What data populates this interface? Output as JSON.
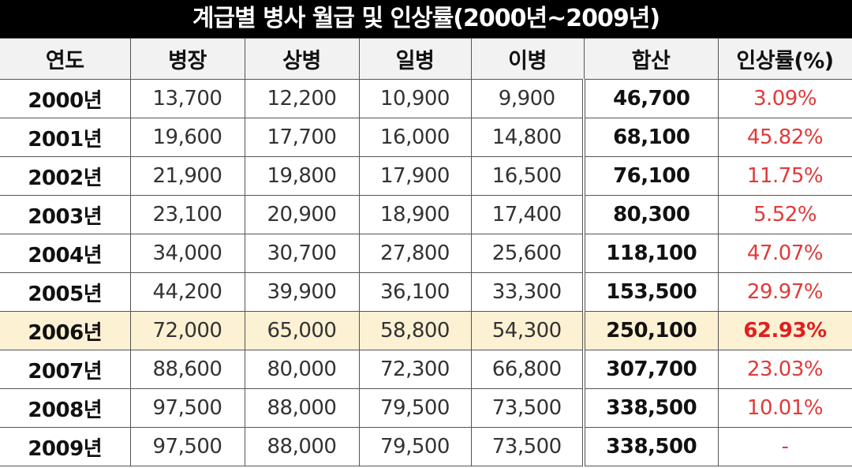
{
  "title": "계급별 병사 월급 및 인상률(2000년~2009년)",
  "headers": [
    "연도",
    "병장",
    "상병",
    "일병",
    "이병",
    "합산",
    "인상률(%)"
  ],
  "highlight_row": "2006년",
  "colors": {
    "title_bg": "#000000",
    "header_bg": "#f2f2f2",
    "highlight_bg": "#fdf1d4",
    "rate_text": "#e03a3a"
  },
  "rows": [
    [
      "2000년",
      "13,700",
      "12,200",
      "10,900",
      "9,900",
      "46,700",
      "3.09%"
    ],
    [
      "2001년",
      "19,600",
      "17,700",
      "16,000",
      "14,800",
      "68,100",
      "45.82%"
    ],
    [
      "2002년",
      "21,900",
      "19,800",
      "17,900",
      "16,500",
      "76,100",
      "11.75%"
    ],
    [
      "2003년",
      "23,100",
      "20,900",
      "18,900",
      "17,400",
      "80,300",
      "5.52%"
    ],
    [
      "2004년",
      "34,000",
      "30,700",
      "27,800",
      "25,600",
      "118,100",
      "47.07%"
    ],
    [
      "2005년",
      "44,200",
      "39,900",
      "36,100",
      "33,300",
      "153,500",
      "29.97%"
    ],
    [
      "2006년",
      "72,000",
      "65,000",
      "58,800",
      "54,300",
      "250,100",
      "62.93%"
    ],
    [
      "2007년",
      "88,600",
      "80,000",
      "72,300",
      "66,800",
      "307,700",
      "23.03%"
    ],
    [
      "2008년",
      "97,500",
      "88,000",
      "79,500",
      "73,500",
      "338,500",
      "10.01%"
    ],
    [
      "2009년",
      "97,500",
      "88,000",
      "79,500",
      "73,500",
      "338,500",
      "-"
    ]
  ]
}
